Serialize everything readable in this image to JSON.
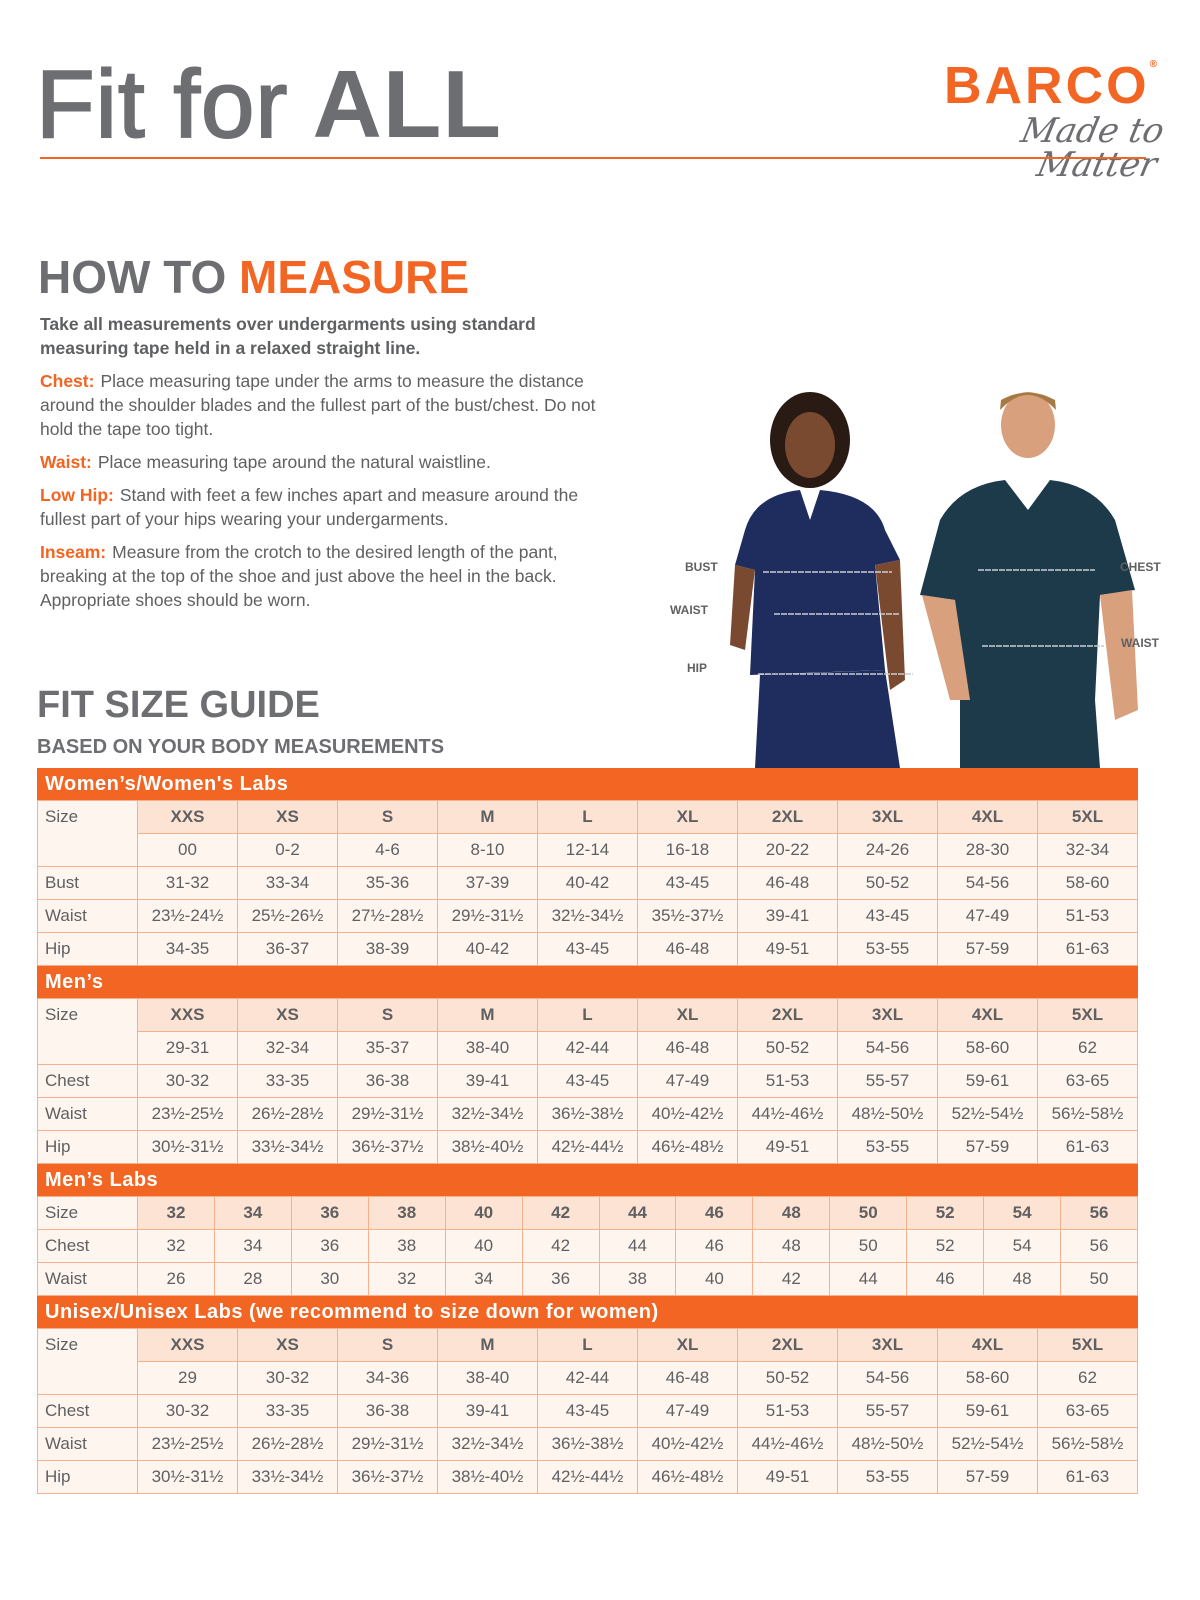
{
  "header": {
    "title_part1": "Fit for",
    "title_part2": "ALL",
    "logo_brand": "BARCO",
    "logo_reg": "®",
    "logo_tagline": "Made to Matter"
  },
  "colors": {
    "accent": "#f26522",
    "gray": "#6d6e71",
    "header_cell": "#fde3d3",
    "body_cell": "#fef5ef"
  },
  "measure": {
    "heading_part1": "HOW TO",
    "heading_part2": "MEASURE",
    "lead": "Take all measurements over undergarments using standard measuring tape held in a relaxed straight line.",
    "items": [
      {
        "key": "Chest:",
        "text": "Place measuring tape under the arms to measure the distance around the shoulder blades and the fullest part of the bust/chest. Do not hold the tape too tight."
      },
      {
        "key": "Waist:",
        "text": "Place measuring tape around the natural waistline."
      },
      {
        "key": "Low Hip:",
        "text": "Stand with feet a few inches apart and measure around the fullest part of your hips wearing your undergarments."
      },
      {
        "key": "Inseam:",
        "text": "Measure from the crotch to the desired length of the pant, breaking at the top of the shoe and just above the heel in the back. Appropriate shoes should be worn."
      }
    ]
  },
  "figure_labels": {
    "bust": "BUST",
    "waist_w": "WAIST",
    "hip": "HIP",
    "chest": "CHEST",
    "waist_m": "WAIST"
  },
  "guide": {
    "heading": "FIT SIZE GUIDE",
    "subheading": "BASED ON YOUR BODY MEASUREMENTS"
  },
  "tables": [
    {
      "title": "Women’s/Women's Labs",
      "size_label": "Size",
      "sizes": [
        "XXS",
        "XS",
        "S",
        "M",
        "L",
        "XL",
        "2XL",
        "3XL",
        "4XL",
        "5XL"
      ],
      "sub": [
        "00",
        "0-2",
        "4-6",
        "8-10",
        "12-14",
        "16-18",
        "20-22",
        "24-26",
        "28-30",
        "32-34"
      ],
      "rows": [
        {
          "label": "Bust",
          "values": [
            "31-32",
            "33-34",
            "35-36",
            "37-39",
            "40-42",
            "43-45",
            "46-48",
            "50-52",
            "54-56",
            "58-60"
          ]
        },
        {
          "label": "Waist",
          "values": [
            "23½-24½",
            "25½-26½",
            "27½-28½",
            "29½-31½",
            "32½-34½",
            "35½-37½",
            "39-41",
            "43-45",
            "47-49",
            "51-53"
          ]
        },
        {
          "label": "Hip",
          "values": [
            "34-35",
            "36-37",
            "38-39",
            "40-42",
            "43-45",
            "46-48",
            "49-51",
            "53-55",
            "57-59",
            "61-63"
          ]
        }
      ]
    },
    {
      "title": "Men’s",
      "size_label": "Size",
      "sizes": [
        "XXS",
        "XS",
        "S",
        "M",
        "L",
        "XL",
        "2XL",
        "3XL",
        "4XL",
        "5XL"
      ],
      "sub": [
        "29-31",
        "32-34",
        "35-37",
        "38-40",
        "42-44",
        "46-48",
        "50-52",
        "54-56",
        "58-60",
        "62"
      ],
      "rows": [
        {
          "label": "Chest",
          "values": [
            "30-32",
            "33-35",
            "36-38",
            "39-41",
            "43-45",
            "47-49",
            "51-53",
            "55-57",
            "59-61",
            "63-65"
          ]
        },
        {
          "label": "Waist",
          "values": [
            "23½-25½",
            "26½-28½",
            "29½-31½",
            "32½-34½",
            "36½-38½",
            "40½-42½",
            "44½-46½",
            "48½-50½",
            "52½-54½",
            "56½-58½"
          ]
        },
        {
          "label": "Hip",
          "values": [
            "30½-31½",
            "33½-34½",
            "36½-37½",
            "38½-40½",
            "42½-44½",
            "46½-48½",
            "49-51",
            "53-55",
            "57-59",
            "61-63"
          ]
        }
      ]
    },
    {
      "title": "Men’s Labs",
      "size_label": "Size",
      "sizes": [
        "32",
        "34",
        "36",
        "38",
        "40",
        "42",
        "44",
        "46",
        "48",
        "50",
        "52",
        "54",
        "56"
      ],
      "rows": [
        {
          "label": "Chest",
          "values": [
            "32",
            "34",
            "36",
            "38",
            "40",
            "42",
            "44",
            "46",
            "48",
            "50",
            "52",
            "54",
            "56"
          ]
        },
        {
          "label": "Waist",
          "values": [
            "26",
            "28",
            "30",
            "32",
            "34",
            "36",
            "38",
            "40",
            "42",
            "44",
            "46",
            "48",
            "50"
          ]
        }
      ]
    },
    {
      "title": "Unisex/Unisex Labs (we recommend to size down for women)",
      "size_label": "Size",
      "sizes": [
        "XXS",
        "XS",
        "S",
        "M",
        "L",
        "XL",
        "2XL",
        "3XL",
        "4XL",
        "5XL"
      ],
      "sub": [
        "29",
        "30-32",
        "34-36",
        "38-40",
        "42-44",
        "46-48",
        "50-52",
        "54-56",
        "58-60",
        "62"
      ],
      "rows": [
        {
          "label": "Chest",
          "values": [
            "30-32",
            "33-35",
            "36-38",
            "39-41",
            "43-45",
            "47-49",
            "51-53",
            "55-57",
            "59-61",
            "63-65"
          ]
        },
        {
          "label": "Waist",
          "values": [
            "23½-25½",
            "26½-28½",
            "29½-31½",
            "32½-34½",
            "36½-38½",
            "40½-42½",
            "44½-46½",
            "48½-50½",
            "52½-54½",
            "56½-58½"
          ]
        },
        {
          "label": "Hip",
          "values": [
            "30½-31½",
            "33½-34½",
            "36½-37½",
            "38½-40½",
            "42½-44½",
            "46½-48½",
            "49-51",
            "53-55",
            "57-59",
            "61-63"
          ]
        }
      ]
    }
  ]
}
